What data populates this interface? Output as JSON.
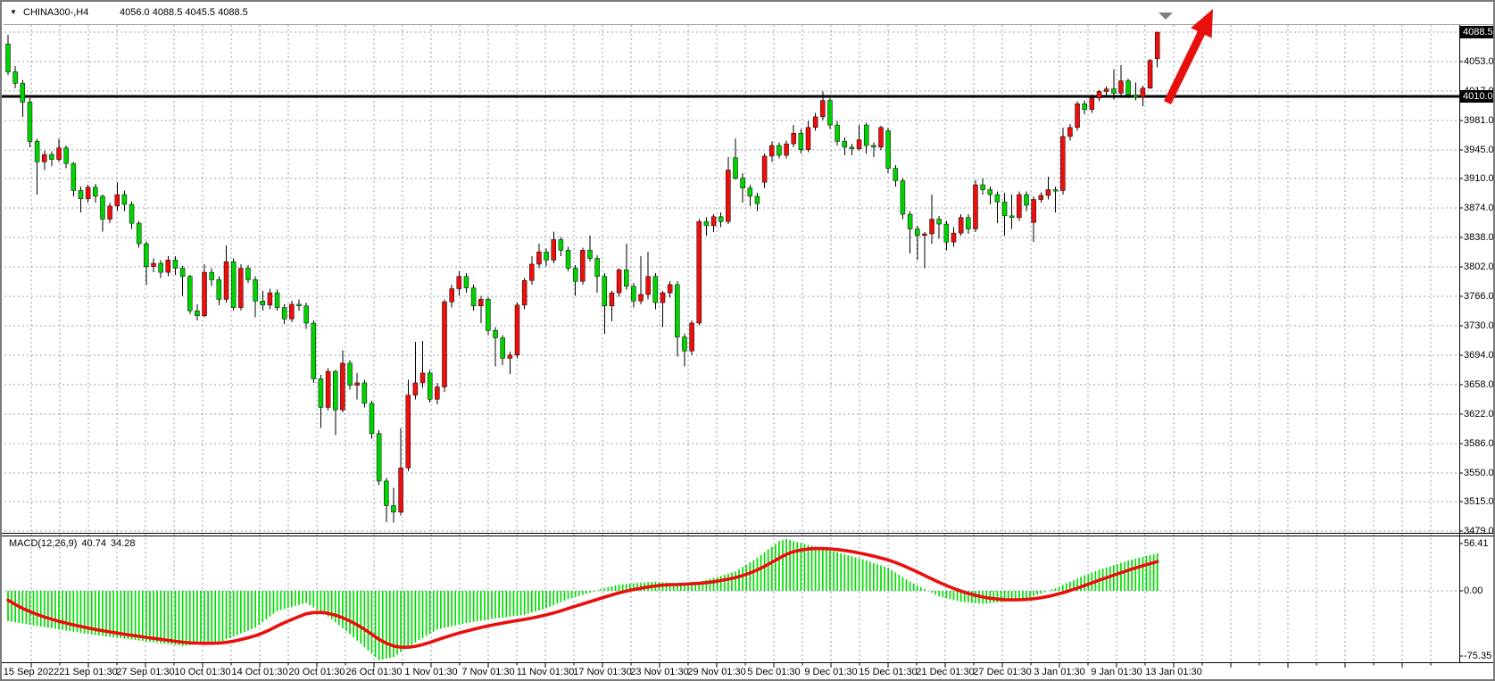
{
  "window": {
    "dropdown_icon": "▼",
    "title_symbol": "CHINA300-,H4",
    "title_ohlc": "4056.0 4088.5 4045.5 4088.5"
  },
  "price_axis": {
    "current_badge": "4088.5",
    "hline_badge": "4010.0",
    "labels": [
      4053.0,
      4017.0,
      3981.0,
      3945.0,
      3910.0,
      3874.0,
      3838.0,
      3802.0,
      3766.0,
      3730.0,
      3694.0,
      3658.0,
      3622.0,
      3586.0,
      3550.0,
      3515.0,
      3479.0
    ]
  },
  "macd_panel": {
    "label": "MACD(12,26,9)",
    "macd_value": "40.74",
    "signal_value": "34.28",
    "axis_max": "56.41",
    "axis_zero": "0.00",
    "axis_min": "-75.35"
  },
  "date_axis": {
    "labels": [
      "15 Sep 2022",
      "21 Sep 01:30",
      "27 Sep 01:30",
      "10 Oct 01:30",
      "14 Oct 01:30",
      "20 Oct 01:30",
      "26 Oct 01:30",
      "1 Nov 01:30",
      "7 Nov 01:30",
      "11 Nov 01:30",
      "17 Nov 01:30",
      "23 Nov 01:30",
      "29 Nov 01:30",
      "5 Dec 01:30",
      "9 Dec 01:30",
      "15 Dec 01:30",
      "21 Dec 01:30",
      "27 Dec 01:30",
      "3 Jan 01:30",
      "9 Jan 01:30",
      "13 Jan 01:30"
    ]
  },
  "colors": {
    "bull_candle": "#EE0F0C",
    "bear_candle": "#00D400",
    "wick": "#000000",
    "macd_hist": "#00DC00",
    "macd_signal": "#E8100C",
    "grid": "#95A1B3",
    "hline": "#000000",
    "arrow": "#E8100C",
    "badge_bg": "#000000",
    "badge_text": "#FFFFFF",
    "shift_marker": "#808080"
  },
  "annotations": {
    "red_arrow": "thick red arrow pointing up-right at latest rally",
    "shift_marker": "gray chart-shift triangle at top right"
  },
  "chart_data": {
    "type": "candlestick",
    "symbol": "CHINA300-",
    "timeframe": "H4",
    "title": "CHINA300-,H4",
    "last_bar": {
      "open": 4056.0,
      "high": 4088.5,
      "low": 4045.5,
      "close": 4088.5
    },
    "hline_level": 4010.0,
    "price_axis_range": [
      3479.0,
      4088.5
    ],
    "grid": "dashed",
    "candles": [
      [
        4074,
        4085,
        4036,
        4040
      ],
      [
        4040,
        4047,
        4020,
        4026
      ],
      [
        4026,
        4030,
        3985,
        4003
      ],
      [
        4003,
        4008,
        3948,
        3955
      ],
      [
        3955,
        3958,
        3890,
        3930
      ],
      [
        3930,
        3944,
        3920,
        3939
      ],
      [
        3939,
        3943,
        3925,
        3933
      ],
      [
        3933,
        3958,
        3930,
        3947
      ],
      [
        3947,
        3950,
        3922,
        3928
      ],
      [
        3928,
        3930,
        3888,
        3895
      ],
      [
        3895,
        3900,
        3868,
        3885
      ],
      [
        3885,
        3902,
        3880,
        3899
      ],
      [
        3899,
        3903,
        3880,
        3888
      ],
      [
        3888,
        3890,
        3845,
        3860
      ],
      [
        3860,
        3880,
        3855,
        3876
      ],
      [
        3876,
        3905,
        3870,
        3890
      ],
      [
        3890,
        3895,
        3870,
        3878
      ],
      [
        3878,
        3882,
        3848,
        3855
      ],
      [
        3855,
        3858,
        3825,
        3830
      ],
      [
        3830,
        3833,
        3780,
        3802
      ],
      [
        3802,
        3812,
        3795,
        3806
      ],
      [
        3806,
        3810,
        3788,
        3795
      ],
      [
        3795,
        3815,
        3790,
        3810
      ],
      [
        3810,
        3815,
        3792,
        3800
      ],
      [
        3800,
        3803,
        3766,
        3790
      ],
      [
        3790,
        3792,
        3744,
        3748
      ],
      [
        3748,
        3756,
        3736,
        3742
      ],
      [
        3742,
        3805,
        3740,
        3795
      ],
      [
        3795,
        3800,
        3778,
        3786
      ],
      [
        3786,
        3790,
        3755,
        3762
      ],
      [
        3762,
        3828,
        3758,
        3808
      ],
      [
        3808,
        3812,
        3748,
        3752
      ],
      [
        3752,
        3805,
        3748,
        3800
      ],
      [
        3800,
        3804,
        3782,
        3786
      ],
      [
        3786,
        3790,
        3740,
        3760
      ],
      [
        3760,
        3772,
        3748,
        3755
      ],
      [
        3755,
        3775,
        3750,
        3770
      ],
      [
        3770,
        3774,
        3748,
        3752
      ],
      [
        3752,
        3756,
        3732,
        3738
      ],
      [
        3738,
        3760,
        3734,
        3756
      ],
      [
        3756,
        3762,
        3748,
        3754
      ],
      [
        3754,
        3758,
        3726,
        3733
      ],
      [
        3733,
        3736,
        3660,
        3665
      ],
      [
        3665,
        3670,
        3605,
        3630
      ],
      [
        3630,
        3678,
        3626,
        3674
      ],
      [
        3674,
        3676,
        3596,
        3627
      ],
      [
        3627,
        3700,
        3624,
        3684
      ],
      [
        3684,
        3688,
        3652,
        3657
      ],
      [
        3657,
        3672,
        3640,
        3660
      ],
      [
        3660,
        3664,
        3630,
        3635
      ],
      [
        3635,
        3638,
        3592,
        3598
      ],
      [
        3598,
        3602,
        3535,
        3540
      ],
      [
        3540,
        3544,
        3490,
        3510
      ],
      [
        3510,
        3532,
        3489,
        3502
      ],
      [
        3502,
        3605,
        3498,
        3556
      ],
      [
        3556,
        3664,
        3552,
        3645
      ],
      [
        3645,
        3710,
        3640,
        3660
      ],
      [
        3660,
        3711,
        3654,
        3672
      ],
      [
        3672,
        3676,
        3636,
        3640
      ],
      [
        3640,
        3660,
        3634,
        3655
      ],
      [
        3655,
        3762,
        3649,
        3759
      ],
      [
        3759,
        3780,
        3752,
        3775
      ],
      [
        3775,
        3796,
        3766,
        3790
      ],
      [
        3790,
        3794,
        3770,
        3776
      ],
      [
        3776,
        3780,
        3748,
        3754
      ],
      [
        3754,
        3766,
        3733,
        3762
      ],
      [
        3762,
        3765,
        3718,
        3724
      ],
      [
        3724,
        3728,
        3680,
        3715
      ],
      [
        3715,
        3718,
        3682,
        3690
      ],
      [
        3690,
        3698,
        3671,
        3694
      ],
      [
        3694,
        3758,
        3690,
        3755
      ],
      [
        3755,
        3788,
        3750,
        3785
      ],
      [
        3785,
        3815,
        3780,
        3805
      ],
      [
        3805,
        3830,
        3800,
        3820
      ],
      [
        3820,
        3824,
        3802,
        3810
      ],
      [
        3810,
        3845,
        3806,
        3835
      ],
      [
        3835,
        3838,
        3815,
        3822
      ],
      [
        3822,
        3826,
        3796,
        3800
      ],
      [
        3800,
        3804,
        3766,
        3784
      ],
      [
        3784,
        3825,
        3780,
        3822
      ],
      [
        3822,
        3840,
        3808,
        3812
      ],
      [
        3812,
        3816,
        3770,
        3790
      ],
      [
        3790,
        3794,
        3720,
        3754
      ],
      [
        3754,
        3772,
        3735,
        3770
      ],
      [
        3770,
        3800,
        3765,
        3798
      ],
      [
        3798,
        3830,
        3774,
        3778
      ],
      [
        3778,
        3782,
        3752,
        3760
      ],
      [
        3760,
        3815,
        3756,
        3768
      ],
      [
        3768,
        3820,
        3762,
        3790
      ],
      [
        3790,
        3794,
        3750,
        3758
      ],
      [
        3758,
        3772,
        3728,
        3770
      ],
      [
        3770,
        3784,
        3764,
        3780
      ],
      [
        3780,
        3784,
        3692,
        3716
      ],
      [
        3716,
        3720,
        3680,
        3699
      ],
      [
        3699,
        3736,
        3694,
        3733
      ],
      [
        3733,
        3860,
        3730,
        3857
      ],
      [
        3857,
        3862,
        3840,
        3852
      ],
      [
        3852,
        3866,
        3844,
        3863
      ],
      [
        3863,
        3868,
        3850,
        3857
      ],
      [
        3857,
        3936,
        3854,
        3920
      ],
      [
        3935,
        3959,
        3908,
        3910
      ],
      [
        3910,
        3916,
        3880,
        3898
      ],
      [
        3898,
        3902,
        3876,
        3888
      ],
      [
        3888,
        3892,
        3870,
        3879
      ],
      [
        3905,
        3940,
        3898,
        3937
      ],
      [
        3937,
        3955,
        3930,
        3950
      ],
      [
        3950,
        3954,
        3934,
        3938
      ],
      [
        3938,
        3956,
        3934,
        3952
      ],
      [
        3952,
        3975,
        3948,
        3965
      ],
      [
        3965,
        3970,
        3940,
        3945
      ],
      [
        3945,
        3980,
        3942,
        3972
      ],
      [
        3972,
        3990,
        3968,
        3985
      ],
      [
        3985,
        4016,
        3981,
        4005
      ],
      [
        4005,
        4008,
        3970,
        3975
      ],
      [
        3975,
        3980,
        3950,
        3955
      ],
      [
        3955,
        3960,
        3938,
        3948
      ],
      [
        3948,
        3952,
        3938,
        3946
      ],
      [
        3946,
        3975,
        3944,
        3957
      ],
      [
        3975,
        3978,
        3940,
        3950
      ],
      [
        3950,
        3954,
        3936,
        3948
      ],
      [
        3948,
        3974,
        3944,
        3972
      ],
      [
        3968,
        3972,
        3916,
        3922
      ],
      [
        3922,
        3926,
        3900,
        3907
      ],
      [
        3907,
        3910,
        3860,
        3866
      ],
      [
        3866,
        3870,
        3818,
        3848
      ],
      [
        3848,
        3852,
        3810,
        3840
      ],
      [
        3840,
        3844,
        3800,
        3842
      ],
      [
        3842,
        3890,
        3830,
        3860
      ],
      [
        3860,
        3864,
        3836,
        3854
      ],
      [
        3854,
        3858,
        3822,
        3832
      ],
      [
        3832,
        3850,
        3826,
        3843
      ],
      [
        3843,
        3866,
        3840,
        3862
      ],
      [
        3862,
        3866,
        3842,
        3848
      ],
      [
        3848,
        3908,
        3844,
        3902
      ],
      [
        3902,
        3910,
        3890,
        3896
      ],
      [
        3896,
        3900,
        3878,
        3890
      ],
      [
        3890,
        3894,
        3855,
        3881
      ],
      [
        3881,
        3892,
        3840,
        3864
      ],
      [
        3864,
        3890,
        3848,
        3862
      ],
      [
        3862,
        3894,
        3858,
        3890
      ],
      [
        3890,
        3894,
        3870,
        3877
      ],
      [
        3856,
        3888,
        3832,
        3884
      ],
      [
        3884,
        3893,
        3880,
        3889
      ],
      [
        3889,
        3912,
        3884,
        3896
      ],
      [
        3896,
        3900,
        3868,
        3895
      ],
      [
        3895,
        3972,
        3890,
        3961
      ],
      [
        3961,
        3976,
        3956,
        3972
      ],
      [
        3972,
        4004,
        3968,
        4001
      ],
      [
        4001,
        4005,
        3988,
        3994
      ],
      [
        3994,
        4012,
        3990,
        4008
      ],
      [
        4008,
        4018,
        4004,
        4016
      ],
      [
        4016,
        4022,
        4010,
        4019
      ],
      [
        4019,
        4043,
        4006,
        4014
      ],
      [
        4014,
        4048,
        4010,
        4029
      ],
      [
        4029,
        4032,
        4008,
        4012
      ],
      [
        4012,
        4027,
        4005,
        4009
      ],
      [
        4009,
        4023,
        3998,
        4020
      ],
      [
        4020,
        4056,
        4019,
        4054
      ],
      [
        4056,
        4088.5,
        4045.5,
        4088.5
      ]
    ],
    "indicator": {
      "name": "MACD",
      "params": [
        12,
        26,
        9
      ],
      "macd_last": 40.74,
      "signal_last": 34.28,
      "axis_range": [
        -75.35,
        56.41
      ],
      "signal_start": -10,
      "macd_curve": [
        [
          0,
          -33
        ],
        [
          11,
          -47
        ],
        [
          24,
          -60
        ],
        [
          29,
          -56
        ],
        [
          34,
          -40
        ],
        [
          37,
          -22
        ],
        [
          41,
          -13
        ],
        [
          44,
          -28
        ],
        [
          47,
          -47
        ],
        [
          51,
          -75.35
        ],
        [
          53,
          -72
        ],
        [
          56,
          -56
        ],
        [
          59,
          -42
        ],
        [
          63,
          -35
        ],
        [
          67,
          -30
        ],
        [
          71,
          -26
        ],
        [
          74,
          -19
        ],
        [
          77,
          -9
        ],
        [
          80,
          -2
        ],
        [
          82,
          3
        ],
        [
          84,
          7
        ],
        [
          89,
          10
        ],
        [
          92,
          8
        ],
        [
          95,
          10
        ],
        [
          97,
          14
        ],
        [
          100,
          21
        ],
        [
          103,
          36
        ],
        [
          106,
          54
        ],
        [
          107,
          56.41
        ],
        [
          108,
          54
        ],
        [
          110,
          50
        ],
        [
          112,
          46
        ],
        [
          115,
          40
        ],
        [
          118,
          33
        ],
        [
          121,
          25
        ],
        [
          124,
          10
        ],
        [
          126,
          2
        ],
        [
          128,
          -6
        ],
        [
          131,
          -12
        ],
        [
          134,
          -14
        ],
        [
          137,
          -12
        ],
        [
          140,
          -8
        ],
        [
          142,
          -3
        ],
        [
          144,
          3
        ],
        [
          146,
          10
        ],
        [
          148,
          17
        ],
        [
          150,
          23
        ],
        [
          152,
          28
        ],
        [
          154,
          33
        ],
        [
          156,
          37
        ],
        [
          158,
          40.74
        ]
      ]
    }
  }
}
